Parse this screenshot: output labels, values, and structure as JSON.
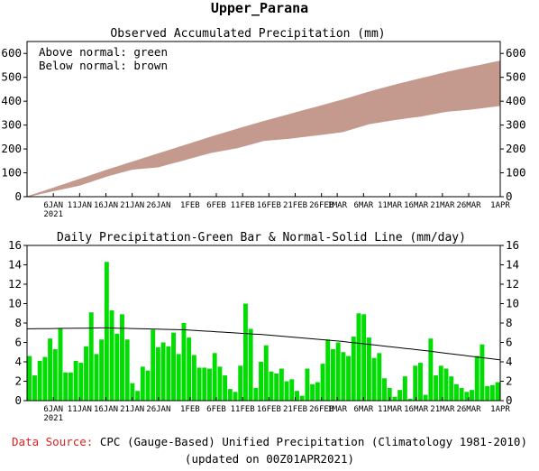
{
  "title": "Upper_Parana",
  "footer": {
    "source_label": "Data Source:",
    "source_text": "CPC (Gauge-Based) Unified Precipitation (Climatology 1981-2010)",
    "updated": "(updated on 00Z01APR2021)"
  },
  "x_ticks": {
    "labels": [
      "6JAN",
      "11JAN",
      "16JAN",
      "21JAN",
      "26JAN",
      "1FEB",
      "6FEB",
      "11FEB",
      "16FEB",
      "21FEB",
      "26FEB",
      "1MAR",
      "6MAR",
      "11MAR",
      "16MAR",
      "21MAR",
      "26MAR",
      "1APR"
    ],
    "day_index": [
      5,
      10,
      15,
      20,
      25,
      31,
      36,
      41,
      46,
      51,
      56,
      59,
      64,
      69,
      74,
      79,
      84,
      90
    ],
    "year_label": "2021"
  },
  "chart_data": [
    {
      "type": "area",
      "title": "Observed Accumulated Precipitation (mm)",
      "legend": [
        "Above normal: green",
        "Below normal: brown"
      ],
      "ylim": [
        0,
        650
      ],
      "yticks": [
        0,
        100,
        200,
        300,
        400,
        500,
        600
      ],
      "grid": false,
      "x_start": "1JAN2021",
      "colors": {
        "above": "#2ecc40",
        "below": "#c49a8f"
      },
      "series": [
        {
          "name": "Observed",
          "x": [
            0,
            5,
            10,
            15,
            20,
            25,
            30,
            35,
            40,
            45,
            50,
            55,
            60,
            65,
            70,
            75,
            80,
            85,
            90
          ],
          "values": [
            0,
            25,
            48,
            85,
            115,
            125,
            155,
            185,
            205,
            235,
            245,
            258,
            272,
            305,
            323,
            338,
            358,
            368,
            382
          ]
        },
        {
          "name": "Normal",
          "x": [
            0,
            5,
            10,
            15,
            20,
            25,
            30,
            35,
            40,
            45,
            50,
            55,
            60,
            65,
            70,
            75,
            80,
            85,
            90
          ],
          "values": [
            0,
            36,
            73,
            110,
            145,
            180,
            215,
            250,
            283,
            315,
            345,
            375,
            405,
            438,
            468,
            495,
            522,
            545,
            568
          ]
        }
      ]
    },
    {
      "type": "bar",
      "title": "Daily Precipitation-Green Bar & Normal-Solid Line (mm/day)",
      "ylim": [
        0,
        16
      ],
      "yticks": [
        0,
        2,
        4,
        6,
        8,
        10,
        12,
        14,
        16
      ],
      "grid": false,
      "colors": {
        "bar": "#00dd00",
        "line": "#000000"
      },
      "values": [
        4.6,
        2.6,
        4.1,
        4.5,
        6.4,
        5.3,
        7.4,
        2.9,
        2.9,
        4.1,
        3.9,
        5.6,
        9.1,
        4.8,
        6.3,
        14.3,
        9.3,
        6.9,
        8.9,
        6.3,
        1.8,
        1.0,
        3.5,
        3.1,
        7.3,
        5.5,
        6.0,
        5.6,
        7.0,
        4.8,
        8.0,
        6.5,
        4.7,
        3.4,
        3.4,
        3.3,
        4.9,
        3.5,
        2.6,
        1.2,
        0.9,
        3.6,
        10.0,
        7.4,
        1.3,
        4.0,
        5.7,
        3.0,
        2.8,
        3.3,
        2.0,
        2.2,
        1.0,
        0.5,
        3.3,
        1.7,
        1.9,
        3.8,
        6.3,
        5.3,
        6.0,
        5.0,
        4.6,
        6.6,
        9.0,
        8.9,
        6.5,
        4.4,
        4.9,
        2.3,
        1.3,
        0.4,
        1.1,
        2.5,
        0.2,
        3.6,
        3.9,
        0.6,
        6.4,
        2.6,
        3.6,
        3.3,
        2.5,
        1.7,
        1.3,
        0.9,
        1.1,
        4.6,
        5.8,
        1.5,
        1.6,
        1.9
      ],
      "normal": {
        "x": [
          0,
          15,
          30,
          45,
          60,
          75,
          90
        ],
        "values": [
          7.4,
          7.5,
          7.3,
          6.8,
          6.1,
          5.2,
          4.2
        ]
      }
    }
  ]
}
